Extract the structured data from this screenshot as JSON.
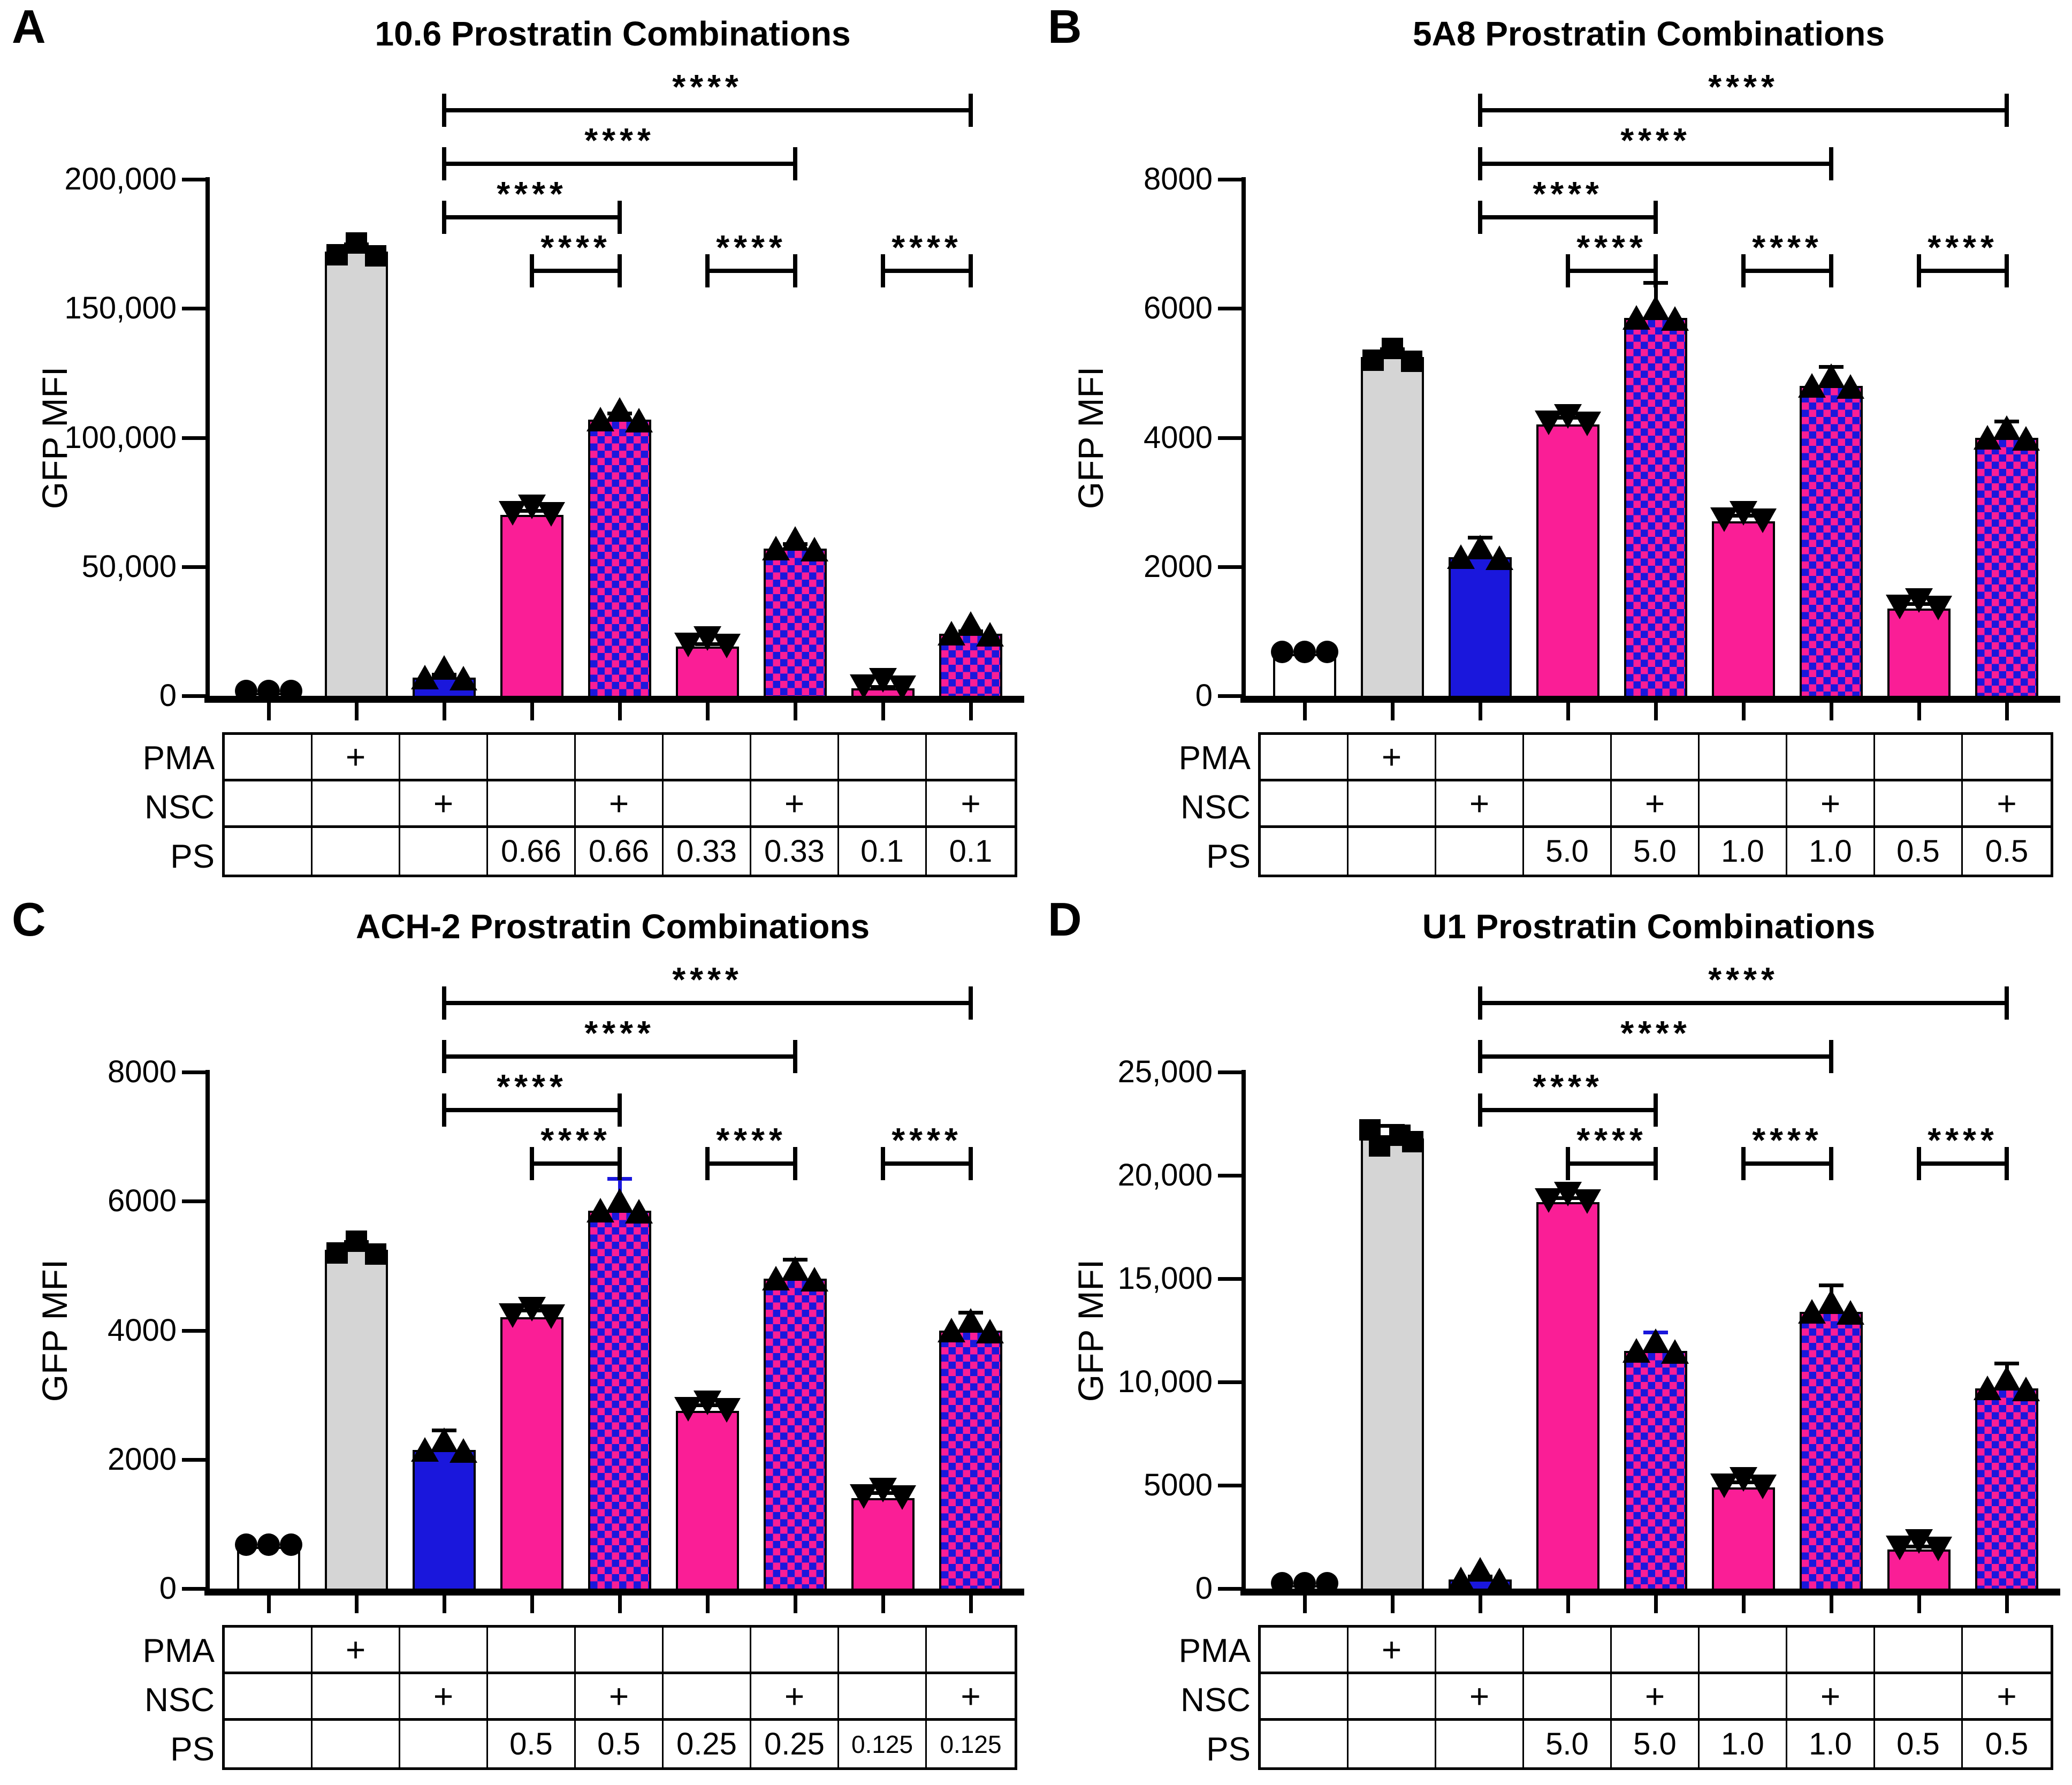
{
  "figure": {
    "background": "#FFFFFF",
    "significance_label": "****",
    "row_labels": [
      "PMA",
      "NSC",
      "PS"
    ],
    "colors": {
      "pink": "#FA1E96",
      "blue": "#1A17DC",
      "gray": "#D5D5D5",
      "white": "#FFFFFF",
      "black": "#000000"
    },
    "brackets": [
      {
        "from_bar": 2,
        "to_bar": 8,
        "level": 0,
        "label": "****"
      },
      {
        "from_bar": 2,
        "to_bar": 6,
        "level": 1,
        "label": "****"
      },
      {
        "from_bar": 2,
        "to_bar": 4,
        "level": 2,
        "label": "****"
      },
      {
        "from_bar": 3,
        "to_bar": 4,
        "level": 3,
        "label": "****"
      },
      {
        "from_bar": 5,
        "to_bar": 6,
        "level": 3,
        "label": "****"
      },
      {
        "from_bar": 7,
        "to_bar": 8,
        "level": 3,
        "label": "****"
      }
    ]
  },
  "chart_data": [
    {
      "panel": "A",
      "type": "bar",
      "title": "10.6 Prostratin Combinations",
      "ylabel": "GFP MFI",
      "ylim": [
        0,
        200000
      ],
      "grid": false,
      "yticks": [
        {
          "value": 200000,
          "label": "200,000"
        },
        {
          "value": 150000,
          "label": "150,000"
        },
        {
          "value": 100000,
          "label": "100,000"
        },
        {
          "value": 50000,
          "label": "50,000"
        },
        {
          "value": 0,
          "label": "0"
        }
      ],
      "bars": [
        {
          "fill": "white",
          "marker": "circle",
          "value": 1000,
          "err": 0
        },
        {
          "fill": "gray",
          "marker": "square",
          "value": 172000,
          "err": 3000
        },
        {
          "fill": "blue",
          "marker": "triangle-up",
          "value": 7000,
          "err": 1200
        },
        {
          "fill": "pink",
          "marker": "triangle-down",
          "value": 70000,
          "err": 1800
        },
        {
          "fill": "checker",
          "marker": "triangle-up",
          "value": 107000,
          "err": 2500
        },
        {
          "fill": "pink",
          "marker": "triangle-down",
          "value": 19000,
          "err": 1200
        },
        {
          "fill": "checker",
          "marker": "triangle-up",
          "value": 57000,
          "err": 1800
        },
        {
          "fill": "pink",
          "marker": "triangle-down",
          "value": 3000,
          "err": 500
        },
        {
          "fill": "checker",
          "marker": "triangle-up",
          "value": 24000,
          "err": 1000
        }
      ],
      "table_rows": [
        [
          "",
          "+",
          "",
          "",
          "",
          "",
          "",
          "",
          ""
        ],
        [
          "",
          "",
          "+",
          "",
          "+",
          "",
          "+",
          "",
          "+"
        ],
        [
          "",
          "",
          "",
          "0.66",
          "0.66",
          "0.33",
          "0.33",
          "0.1",
          "0.1"
        ]
      ]
    },
    {
      "panel": "B",
      "type": "bar",
      "title": "5A8 Prostratin Combinations",
      "ylabel": "GFP MFI",
      "ylim": [
        0,
        8000
      ],
      "grid": false,
      "yticks": [
        {
          "value": 8000,
          "label": "8000"
        },
        {
          "value": 6000,
          "label": "6000"
        },
        {
          "value": 4000,
          "label": "4000"
        },
        {
          "value": 2000,
          "label": "2000"
        },
        {
          "value": 0,
          "label": "0"
        }
      ],
      "bars": [
        {
          "fill": "white",
          "marker": "circle",
          "value": 650,
          "err": 0
        },
        {
          "fill": "gray",
          "marker": "square",
          "value": 5250,
          "err": 120
        },
        {
          "fill": "blue",
          "marker": "triangle-up",
          "value": 2150,
          "err": 300
        },
        {
          "fill": "pink",
          "marker": "triangle-down",
          "value": 4200,
          "err": 110
        },
        {
          "fill": "checker",
          "marker": "triangle-up",
          "value": 5850,
          "err": 550
        },
        {
          "fill": "pink",
          "marker": "triangle-down",
          "value": 2700,
          "err": 90
        },
        {
          "fill": "checker",
          "marker": "triangle-up",
          "value": 4800,
          "err": 300
        },
        {
          "fill": "pink",
          "marker": "triangle-down",
          "value": 1350,
          "err": 80
        },
        {
          "fill": "checker",
          "marker": "triangle-up",
          "value": 4000,
          "err": 250
        }
      ],
      "table_rows": [
        [
          "",
          "+",
          "",
          "",
          "",
          "",
          "",
          "",
          ""
        ],
        [
          "",
          "",
          "+",
          "",
          "+",
          "",
          "+",
          "",
          "+"
        ],
        [
          "",
          "",
          "",
          "5.0",
          "5.0",
          "1.0",
          "1.0",
          "0.5",
          "0.5"
        ]
      ]
    },
    {
      "panel": "C",
      "type": "bar",
      "title": "ACH-2 Prostratin Combinations",
      "ylabel": "GFP MFI",
      "ylim": [
        0,
        8000
      ],
      "grid": false,
      "yticks": [
        {
          "value": 8000,
          "label": "8000"
        },
        {
          "value": 6000,
          "label": "6000"
        },
        {
          "value": 4000,
          "label": "4000"
        },
        {
          "value": 2000,
          "label": "2000"
        },
        {
          "value": 0,
          "label": "0"
        }
      ],
      "bars": [
        {
          "fill": "white",
          "marker": "circle",
          "value": 650,
          "err": 0
        },
        {
          "fill": "gray",
          "marker": "square",
          "value": 5250,
          "err": 120
        },
        {
          "fill": "blue",
          "marker": "triangle-up",
          "value": 2150,
          "err": 300
        },
        {
          "fill": "pink",
          "marker": "triangle-down",
          "value": 4200,
          "err": 110
        },
        {
          "fill": "checker",
          "marker": "triangle-up",
          "value": 5850,
          "err": 500,
          "err_color": "blue"
        },
        {
          "fill": "pink",
          "marker": "triangle-down",
          "value": 2750,
          "err": 90
        },
        {
          "fill": "checker",
          "marker": "triangle-up",
          "value": 4800,
          "err": 300
        },
        {
          "fill": "pink",
          "marker": "triangle-down",
          "value": 1400,
          "err": 80
        },
        {
          "fill": "checker",
          "marker": "triangle-up",
          "value": 4000,
          "err": 280
        }
      ],
      "table_rows": [
        [
          "",
          "+",
          "",
          "",
          "",
          "",
          "",
          "",
          ""
        ],
        [
          "",
          "",
          "+",
          "",
          "+",
          "",
          "+",
          "",
          "+"
        ],
        [
          "",
          "",
          "",
          "0.5",
          "0.5",
          "0.25",
          "0.25",
          "0.125",
          "0.125"
        ]
      ]
    },
    {
      "panel": "D",
      "type": "bar",
      "title": "U1 Prostratin Combinations",
      "ylabel": "GFP MFI",
      "ylim": [
        0,
        25000
      ],
      "grid": false,
      "yticks": [
        {
          "value": 25000,
          "label": "25,000"
        },
        {
          "value": 20000,
          "label": "20,000"
        },
        {
          "value": 15000,
          "label": "15,000"
        },
        {
          "value": 10000,
          "label": "10,000"
        },
        {
          "value": 5000,
          "label": "5000"
        },
        {
          "value": 0,
          "label": "0"
        }
      ],
      "bars": [
        {
          "fill": "white",
          "marker": "circle",
          "value": 150,
          "err": 0
        },
        {
          "fill": "gray",
          "marker": "square",
          "value": 21800,
          "err": 600,
          "points": 4
        },
        {
          "fill": "blue",
          "marker": "triangle-up",
          "value": 450,
          "err": 150
        },
        {
          "fill": "pink",
          "marker": "triangle-down",
          "value": 18700,
          "err": 200
        },
        {
          "fill": "checker",
          "marker": "triangle-up",
          "value": 11500,
          "err": 900,
          "err_color": "blue"
        },
        {
          "fill": "pink",
          "marker": "triangle-down",
          "value": 4900,
          "err": 250
        },
        {
          "fill": "checker",
          "marker": "triangle-up",
          "value": 13400,
          "err": 1300
        },
        {
          "fill": "pink",
          "marker": "triangle-down",
          "value": 1900,
          "err": 150
        },
        {
          "fill": "checker",
          "marker": "triangle-up",
          "value": 9700,
          "err": 1200
        }
      ],
      "table_rows": [
        [
          "",
          "+",
          "",
          "",
          "",
          "",
          "",
          "",
          ""
        ],
        [
          "",
          "",
          "+",
          "",
          "+",
          "",
          "+",
          "",
          "+"
        ],
        [
          "",
          "",
          "",
          "5.0",
          "5.0",
          "1.0",
          "1.0",
          "0.5",
          "0.5"
        ]
      ]
    }
  ]
}
